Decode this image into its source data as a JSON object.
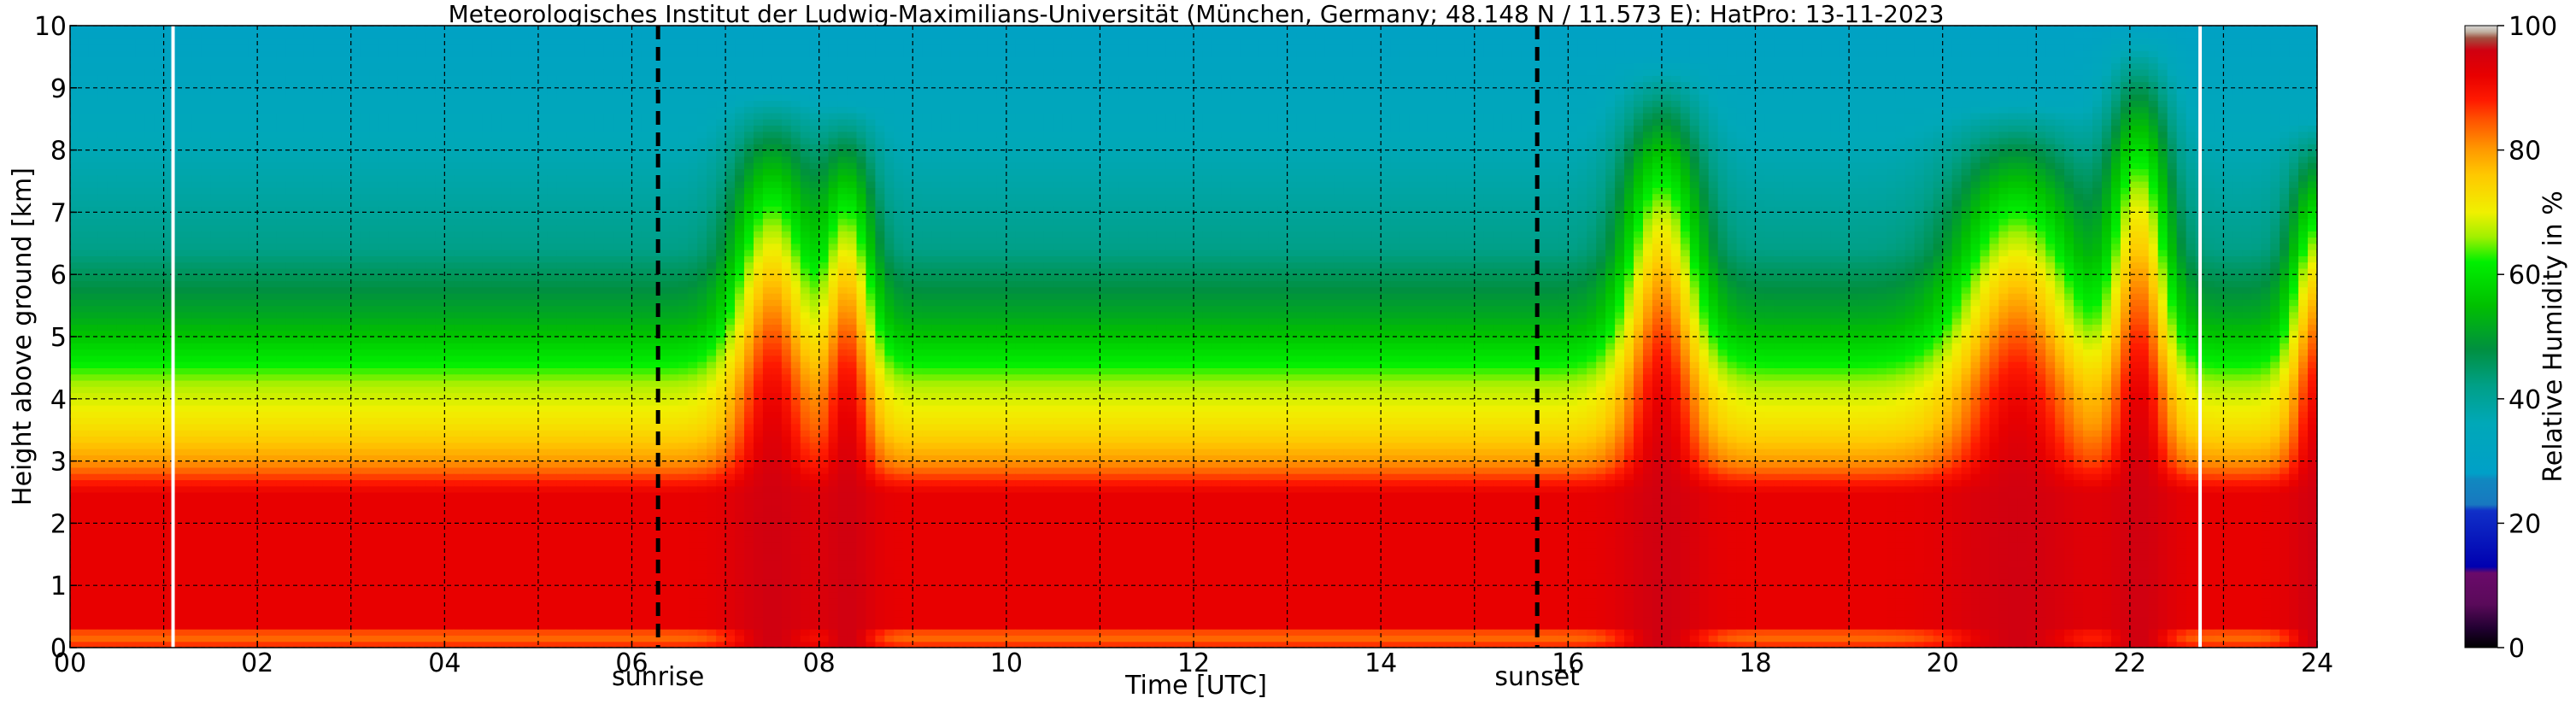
{
  "chart_data": {
    "type": "heatmap",
    "title": "Meteorologisches Institut der Ludwig-Maximilians-Universität (München, Germany; 48.148 N / 11.573 E):    HatPro: 13-11-2023",
    "xlabel": "Time [UTC]",
    "ylabel": "Height above ground [km]",
    "xlim": [
      0,
      24
    ],
    "ylim": [
      0,
      10
    ],
    "x_ticks": [
      {
        "v": 0,
        "label": "00"
      },
      {
        "v": 2,
        "label": "02"
      },
      {
        "v": 4,
        "label": "04"
      },
      {
        "v": 6,
        "label": "06"
      },
      {
        "v": 8,
        "label": "08"
      },
      {
        "v": 10,
        "label": "10"
      },
      {
        "v": 12,
        "label": "12"
      },
      {
        "v": 14,
        "label": "14"
      },
      {
        "v": 16,
        "label": "16"
      },
      {
        "v": 18,
        "label": "18"
      },
      {
        "v": 20,
        "label": "20"
      },
      {
        "v": 22,
        "label": "22"
      },
      {
        "v": 24,
        "label": "24"
      }
    ],
    "y_ticks": [
      {
        "v": 0,
        "label": "0"
      },
      {
        "v": 1,
        "label": "1"
      },
      {
        "v": 2,
        "label": "2"
      },
      {
        "v": 3,
        "label": "3"
      },
      {
        "v": 4,
        "label": "4"
      },
      {
        "v": 5,
        "label": "5"
      },
      {
        "v": 6,
        "label": "6"
      },
      {
        "v": 7,
        "label": "7"
      },
      {
        "v": 8,
        "label": "8"
      },
      {
        "v": 9,
        "label": "9"
      },
      {
        "v": 10,
        "label": "10"
      }
    ],
    "grid": true,
    "events": [
      {
        "label": "sunrise",
        "time": 6.28
      },
      {
        "label": "sunset",
        "time": 15.67
      }
    ],
    "data_gaps": [
      1.1,
      22.75
    ],
    "colorbar": {
      "label": "Relative Humidity in %",
      "range": [
        0,
        100
      ],
      "ticks": [
        {
          "v": 0,
          "label": "0"
        },
        {
          "v": 20,
          "label": "20"
        },
        {
          "v": 40,
          "label": "40"
        },
        {
          "v": 60,
          "label": "60"
        },
        {
          "v": 80,
          "label": "80"
        },
        {
          "v": 100,
          "label": "100"
        }
      ],
      "stops": [
        [
          0,
          "#000000"
        ],
        [
          3,
          "#200030"
        ],
        [
          7,
          "#5a0a5a"
        ],
        [
          12,
          "#6a0a6a"
        ],
        [
          13,
          "#0000b0"
        ],
        [
          22,
          "#1030c8"
        ],
        [
          23,
          "#1878c0"
        ],
        [
          27,
          "#1088c0"
        ],
        [
          28,
          "#00a0c8"
        ],
        [
          36,
          "#00a8b8"
        ],
        [
          42,
          "#00a088"
        ],
        [
          48,
          "#009040"
        ],
        [
          55,
          "#00c000"
        ],
        [
          62,
          "#00f000"
        ],
        [
          66,
          "#a0f000"
        ],
        [
          70,
          "#f0f000"
        ],
        [
          76,
          "#ffc800"
        ],
        [
          80,
          "#ff9a00"
        ],
        [
          85,
          "#ff5000"
        ],
        [
          88,
          "#ff1a00"
        ],
        [
          92,
          "#e80000"
        ],
        [
          96,
          "#d00010"
        ],
        [
          98,
          "#a05040"
        ],
        [
          99,
          "#c0b0a0"
        ],
        [
          100,
          "#d8d8d8"
        ]
      ]
    },
    "background_profile": [
      [
        0,
        88
      ],
      [
        0.2,
        82
      ],
      [
        0.35,
        92
      ],
      [
        2.5,
        92
      ],
      [
        3.0,
        80
      ],
      [
        3.6,
        72
      ],
      [
        4.2,
        67
      ],
      [
        4.7,
        60
      ],
      [
        5.3,
        52
      ],
      [
        6.2,
        44
      ],
      [
        6.4,
        42
      ],
      [
        7.5,
        38
      ],
      [
        8.7,
        34
      ],
      [
        10,
        30
      ]
    ],
    "moist_events": [
      {
        "center": 7.5,
        "width": 0.45,
        "height": 9.0
      },
      {
        "center": 8.3,
        "width": 0.3,
        "height": 8.8
      },
      {
        "center": 17.0,
        "width": 0.45,
        "height": 9.5
      },
      {
        "center": 20.8,
        "width": 0.7,
        "height": 8.8
      },
      {
        "center": 22.1,
        "width": 0.35,
        "height": 10.0
      },
      {
        "center": 24.0,
        "width": 0.3,
        "height": 8.5
      }
    ]
  }
}
